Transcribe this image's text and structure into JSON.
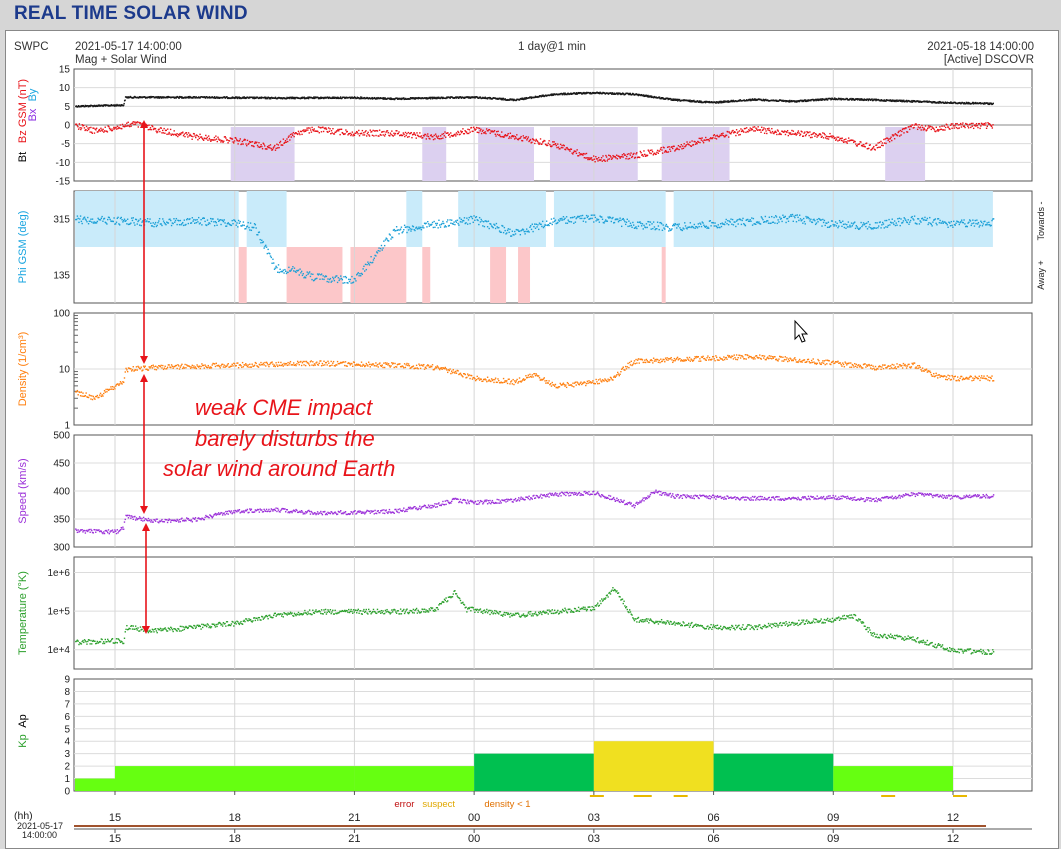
{
  "page_title": "REAL TIME SOLAR WIND",
  "header": {
    "org": "SWPC",
    "start_time": "2021-05-17 14:00:00",
    "source_line": "Mag + Solar Wind",
    "range": "1 day@1 min",
    "end_time": "2021-05-18 14:00:00",
    "spacecraft": "[Active] DSCOVR"
  },
  "annotation": {
    "lines": [
      "weak CME impact",
      "barely disturbs the",
      "solar wind around Earth"
    ],
    "color": "#e8141a"
  },
  "bottom": {
    "hh_label": "(hh)",
    "date_label": "2021-05-17",
    "time_label": "14:00:00",
    "legend": {
      "error": "error",
      "suspect": "suspect",
      "density": "density < 1"
    }
  },
  "chart_data": [
    {
      "type": "line",
      "id": "mag",
      "ylabels": [
        {
          "text": "Bt",
          "color": "#000000"
        },
        {
          "text": "Bz GSM (nT)",
          "color": "#e8141a"
        },
        {
          "text": "Bx",
          "color": "#8a2be2"
        },
        {
          "text": "By",
          "color": "#19a5e0"
        }
      ],
      "ylim": [
        -15,
        15
      ],
      "yticks": [
        -15,
        -10,
        -5,
        0,
        5,
        10,
        15
      ],
      "series": [
        {
          "id": "bt",
          "color": "#1a1a1a",
          "x": [
            0,
            1.2,
            1.25,
            3,
            5,
            7,
            8,
            10,
            11,
            12,
            13,
            14,
            15,
            16,
            17,
            18,
            19,
            20,
            21,
            22,
            23
          ],
          "y": [
            5.2,
            5.5,
            7.6,
            7.6,
            7.4,
            7.5,
            7.2,
            7.6,
            6.9,
            8.4,
            8.8,
            8.4,
            6.9,
            6.2,
            7.0,
            6.5,
            7.2,
            6.9,
            6.5,
            6.1,
            5.9
          ]
        },
        {
          "id": "bz",
          "color": "#e8141a",
          "x": [
            0,
            0.5,
            1,
            1.5,
            2,
            3,
            4,
            5,
            5.5,
            6,
            7,
            8,
            9,
            10,
            11,
            12,
            13,
            14,
            15,
            16,
            17,
            18,
            19,
            20,
            21,
            21.5,
            22,
            23
          ],
          "y": [
            0,
            -1.5,
            -0.5,
            0.5,
            -1,
            -3,
            -4,
            -6,
            -2,
            -1,
            -2,
            -2,
            -3,
            -1,
            -3,
            -5,
            -9,
            -8,
            -6,
            -3,
            -1,
            -2,
            -3,
            -6,
            0,
            -1,
            0,
            0
          ]
        }
      ],
      "shading": [
        [
          3.9,
          5.5
        ],
        [
          8.7,
          9.3
        ],
        [
          10.1,
          11.5
        ],
        [
          11.9,
          14.1
        ],
        [
          14.7,
          16.4
        ],
        [
          20.3,
          21.3
        ]
      ]
    },
    {
      "type": "scatter",
      "id": "phi",
      "ylabel": "Phi GSM (deg)",
      "right_labels": [
        "Away +",
        "Towards -"
      ],
      "yticks": [
        135,
        315
      ],
      "series": {
        "color": "#1a9fd6",
        "x": [
          0,
          1,
          2,
          3,
          4,
          4.5,
          5,
          5.5,
          6,
          6.5,
          7,
          8,
          9,
          10,
          11,
          12,
          13,
          14,
          15,
          16,
          17,
          18,
          19,
          20,
          21,
          22,
          23
        ],
        "y": [
          315,
          312,
          305,
          310,
          305,
          290,
          160,
          150,
          130,
          125,
          120,
          280,
          300,
          315,
          270,
          310,
          320,
          300,
          290,
          300,
          310,
          320,
          300,
          295,
          315,
          300,
          305
        ]
      },
      "towards_bands": [
        [
          0,
          4.1
        ],
        [
          4.3,
          5.3
        ],
        [
          8.3,
          8.7
        ],
        [
          9.6,
          11.8
        ],
        [
          12.0,
          14.8
        ],
        [
          15.0,
          23
        ]
      ],
      "away_bands": [
        [
          4.1,
          4.3
        ],
        [
          5.3,
          6.7
        ],
        [
          6.9,
          8.3
        ],
        [
          8.7,
          8.9
        ],
        [
          10.4,
          10.8
        ],
        [
          11.1,
          11.4
        ],
        [
          14.7,
          14.8
        ]
      ]
    },
    {
      "type": "scatter",
      "id": "density",
      "ylabel": "Density (1/cm³)",
      "color": "#ff7f0e",
      "yscale": "log",
      "ylim": [
        1,
        100
      ],
      "ytick_labels": [
        "1",
        "10",
        "100"
      ],
      "x": [
        0,
        0.5,
        1,
        1.2,
        1.25,
        2,
        4,
        6,
        8,
        9,
        9.5,
        10,
        11,
        11.5,
        12,
        13,
        13.5,
        14,
        15,
        16,
        17,
        18,
        19,
        20,
        21,
        21.5,
        22,
        23
      ],
      "y": [
        4,
        3,
        5,
        6,
        10,
        11,
        12,
        13,
        12,
        11,
        9,
        7,
        6,
        8,
        5,
        6,
        7,
        14,
        15,
        16,
        17,
        15,
        13,
        11,
        12,
        8,
        7,
        7
      ]
    },
    {
      "type": "scatter",
      "id": "speed",
      "ylabel": "Speed (km/s)",
      "color": "#9b30d9",
      "ylim": [
        300,
        500
      ],
      "yticks": [
        300,
        350,
        400,
        450,
        500
      ],
      "x": [
        0,
        1,
        1.2,
        1.25,
        2,
        3,
        4,
        5,
        6,
        7,
        8,
        9,
        9.5,
        10,
        11,
        12,
        13,
        14,
        14.5,
        15,
        16,
        17,
        18,
        19,
        20,
        21,
        22,
        23
      ],
      "y": [
        330,
        328,
        335,
        355,
        348,
        350,
        365,
        368,
        362,
        363,
        365,
        375,
        385,
        380,
        385,
        395,
        398,
        375,
        400,
        392,
        390,
        388,
        388,
        390,
        385,
        395,
        390,
        392
      ]
    },
    {
      "type": "scatter",
      "id": "temperature",
      "ylabel": "Temperature (°K)",
      "color": "#2ca02c",
      "yscale": "log",
      "ylim": [
        3.5,
        6.4
      ],
      "ytick_labels": [
        "1e+4",
        "1e+5",
        "1e+6"
      ],
      "x": [
        0,
        1,
        1.2,
        1.25,
        2,
        3,
        4,
        5,
        6,
        7,
        8,
        9,
        9.5,
        9.8,
        10,
        11,
        12,
        13,
        13.5,
        14,
        15,
        16,
        17,
        18,
        19,
        19.5,
        20,
        21,
        22,
        23
      ],
      "y": [
        4.2,
        4.25,
        4.2,
        4.6,
        4.5,
        4.6,
        4.7,
        4.9,
        5.0,
        5.0,
        5.0,
        5.05,
        5.5,
        5.05,
        5.05,
        4.9,
        5.0,
        5.1,
        5.6,
        4.8,
        4.7,
        4.6,
        4.6,
        4.7,
        4.8,
        4.9,
        4.4,
        4.3,
        4.0,
        3.95
      ]
    },
    {
      "type": "bar",
      "id": "kp",
      "ylabels": [
        {
          "text": "Kp",
          "color": "#2ca02c"
        },
        {
          "text": "Ap",
          "color": "#000000"
        }
      ],
      "ylim": [
        0,
        9
      ],
      "yticks": [
        0,
        1,
        2,
        3,
        4,
        5,
        6,
        7,
        8,
        9
      ],
      "bars": [
        {
          "start": -1,
          "end": 1,
          "value": 1,
          "color": "#66ff11"
        },
        {
          "start": 1,
          "end": 7,
          "value": 2,
          "color": "#66ff11"
        },
        {
          "start": 7,
          "end": 10,
          "value": 2,
          "color": "#66ff11"
        },
        {
          "start": 10,
          "end": 13,
          "value": 3,
          "color": "#00c050"
        },
        {
          "start": 13,
          "end": 16,
          "value": 4,
          "color": "#f0e020"
        },
        {
          "start": 16,
          "end": 19,
          "value": 3,
          "color": "#00c050"
        },
        {
          "start": 19,
          "end": 22,
          "value": 2,
          "color": "#66ff11"
        }
      ]
    }
  ],
  "x_axis": {
    "tick_labels": [
      "15",
      "18",
      "21",
      "00",
      "03",
      "06",
      "09",
      "12"
    ],
    "tick_hours": [
      1,
      4,
      7,
      10,
      13,
      16,
      19,
      22
    ]
  }
}
